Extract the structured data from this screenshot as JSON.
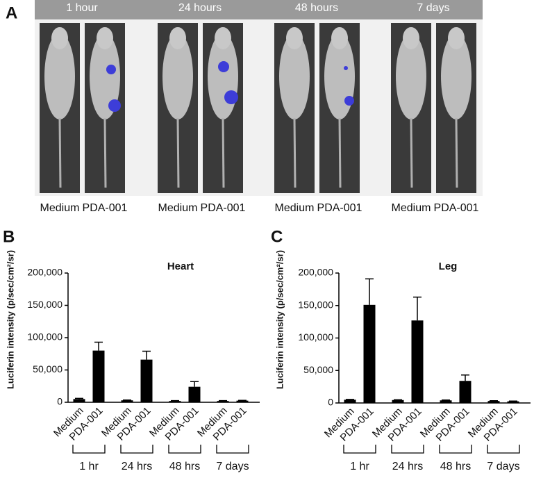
{
  "panel_a": {
    "label": "A",
    "timepoints": [
      {
        "label": "1 hour",
        "images": [
          "Medium",
          "PDA-001"
        ]
      },
      {
        "label": "24 hours",
        "images": [
          "Medium",
          "PDA-001"
        ]
      },
      {
        "label": "48 hours",
        "images": [
          "Medium",
          "PDA-001"
        ]
      },
      {
        "label": "7 days",
        "images": [
          "Medium",
          "PDA-001"
        ]
      }
    ]
  },
  "chart_data": [
    {
      "type": "bar",
      "panel": "B",
      "title": "Heart",
      "y_label": "Luciferin intensity (p/sec/cm²/sr)",
      "categories": [
        "Medium",
        "PDA-001",
        "Medium",
        "PDA-001",
        "Medium",
        "PDA-001",
        "Medium",
        "PDA-001"
      ],
      "groups": [
        "1 hr",
        "24 hrs",
        "48 hrs",
        "7 days"
      ],
      "values": [
        5000,
        80000,
        3000,
        66000,
        2000,
        24000,
        2000,
        2500
      ],
      "errors": [
        1000,
        13000,
        500,
        13000,
        500,
        8000,
        500,
        500
      ],
      "color": "#000000",
      "ylim": [
        0,
        200000
      ],
      "yticks": [
        0,
        {
          "value": 50000,
          "label": "50,000"
        },
        {
          "value": 100000,
          "label": "100,000"
        },
        {
          "value": 150000,
          "label": "150,000"
        },
        {
          "value": 200000,
          "label": "200,000"
        }
      ]
    },
    {
      "type": "bar",
      "panel": "C",
      "title": "Leg",
      "y_label": "Luciferin intensity (p/sec/cm²/sr)",
      "categories": [
        "Medium",
        "PDA-001",
        "Medium",
        "PDA-001",
        "Medium",
        "PDA-001",
        "Medium",
        "PDA-001"
      ],
      "groups": [
        "1 hr",
        "24 hrs",
        "48 hrs",
        "7 days"
      ],
      "values": [
        5000,
        151000,
        4500,
        127000,
        4000,
        34000,
        3000,
        2500
      ],
      "errors": [
        500,
        40000,
        500,
        36000,
        500,
        9000,
        500,
        500
      ],
      "color": "#000000",
      "ylim": [
        0,
        200000
      ],
      "yticks": [
        0,
        {
          "value": 50000,
          "label": "50,000"
        },
        {
          "value": 100000,
          "label": "100,000"
        },
        {
          "value": 150000,
          "label": "150,000"
        },
        {
          "value": 200000,
          "label": "200,000"
        }
      ]
    }
  ]
}
